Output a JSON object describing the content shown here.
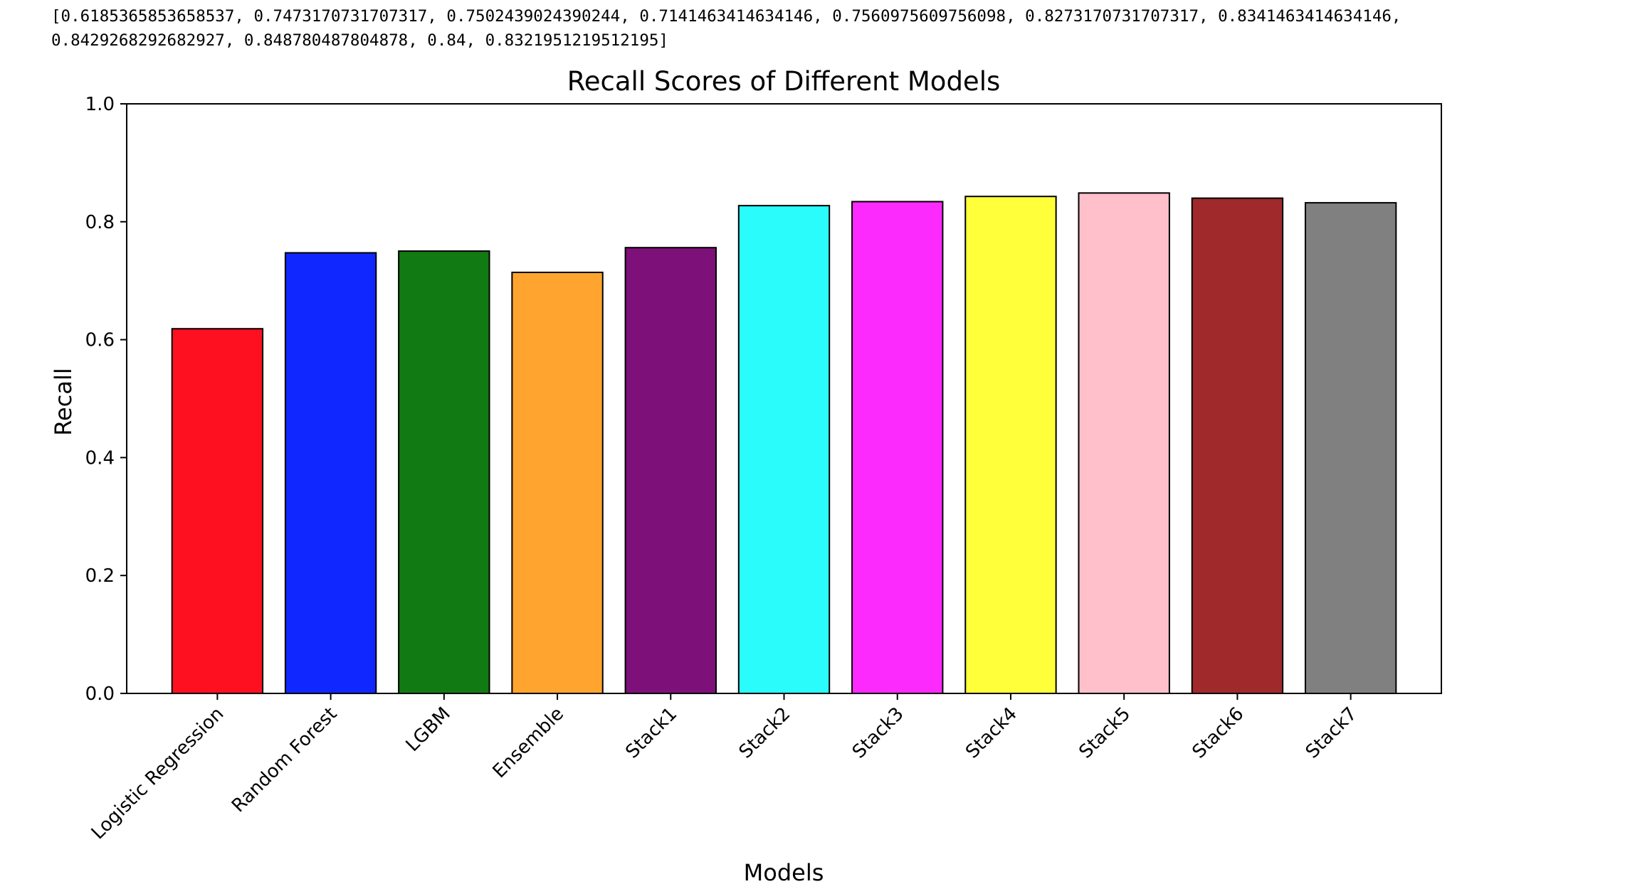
{
  "output": {
    "lines": [
      "[0.6185365853658537, 0.7473170731707317, 0.7502439024390244, 0.7141463414634146, 0.7560975609756098, 0.8273170731707317, 0.8341463414634146,",
      "0.8429268292682927, 0.848780487804878, 0.84, 0.8321951219512195]"
    ]
  },
  "chart_data": {
    "type": "bar",
    "title": "Recall Scores of Different Models",
    "xlabel": "Models",
    "ylabel": "Recall",
    "categories": [
      "Logistic Regression",
      "Random Forest",
      "LGBM",
      "Ensemble",
      "Stack1",
      "Stack2",
      "Stack3",
      "Stack4",
      "Stack5",
      "Stack6",
      "Stack7"
    ],
    "values": [
      0.6185365853658537,
      0.7473170731707317,
      0.7502439024390244,
      0.7141463414634146,
      0.7560975609756098,
      0.8273170731707317,
      0.8341463414634146,
      0.8429268292682927,
      0.848780487804878,
      0.84,
      0.8321951219512195
    ],
    "colors": [
      "#ff1020",
      "#1028ff",
      "#127a12",
      "#ffa42e",
      "#7e107a",
      "#2afcfc",
      "#fc2afc",
      "#ffff3a",
      "#ffc0cb",
      "#a0292b",
      "#808080"
    ],
    "ylim": [
      0.0,
      1.0
    ],
    "yticks": [
      0.0,
      0.2,
      0.4,
      0.6,
      0.8,
      1.0
    ],
    "ytick_labels": [
      "0.0",
      "0.2",
      "0.4",
      "0.6",
      "0.8",
      "1.0"
    ],
    "grid": false,
    "legend": false,
    "bar_edge_color": "#000000"
  }
}
